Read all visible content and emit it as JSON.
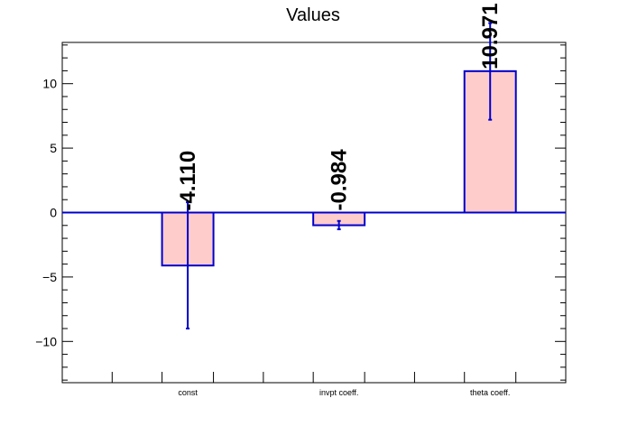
{
  "chart_data": {
    "type": "bar",
    "title": "Values",
    "xlabel": "",
    "ylabel": "",
    "categories": [
      "const",
      "invpt coeff.",
      "theta coeff."
    ],
    "values": [
      -4.11,
      -0.984,
      10.971
    ],
    "value_labels": [
      "-4.110",
      "-0.984",
      "10.971"
    ],
    "errors": [
      {
        "low": -9.0,
        "high": 0.8
      },
      {
        "low": -1.3,
        "high": -0.65
      },
      {
        "low": 7.2,
        "high": 14.7
      }
    ],
    "ylim": [
      -13.2,
      13.2
    ],
    "yticks": [
      -10,
      -5,
      0,
      5,
      10
    ],
    "ytick_labels": [
      "−10",
      "−5",
      "0",
      "5",
      "10"
    ],
    "grid": false,
    "legend": "none",
    "colors": {
      "bar_fill": "#ffcccc",
      "bar_edge": "#0000cc",
      "error_bar": "#0000cc"
    }
  }
}
